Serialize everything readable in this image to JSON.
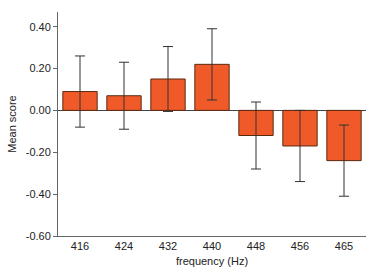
{
  "chart_data": {
    "type": "bar",
    "x_label": "frequency (Hz)",
    "y_label": "Mean score",
    "categories": [
      "416",
      "424",
      "432",
      "440",
      "448",
      "456",
      "465"
    ],
    "values": [
      0.09,
      0.07,
      0.15,
      0.22,
      -0.12,
      -0.17,
      -0.24
    ],
    "error": [
      0.17,
      0.16,
      0.155,
      0.17,
      0.16,
      0.17,
      0.17
    ],
    "color": "#f05a28",
    "ylim": [
      -0.6,
      0.47
    ],
    "yticks": [
      {
        "value": -0.6,
        "label": "-0.60"
      },
      {
        "value": -0.4,
        "label": "-0.40"
      },
      {
        "value": -0.2,
        "label": "-0.20"
      },
      {
        "value": 0,
        "label": "0.00"
      },
      {
        "value": 0.2,
        "label": "0.20"
      },
      {
        "value": 0.4,
        "label": "0.40"
      }
    ],
    "grid": false
  }
}
